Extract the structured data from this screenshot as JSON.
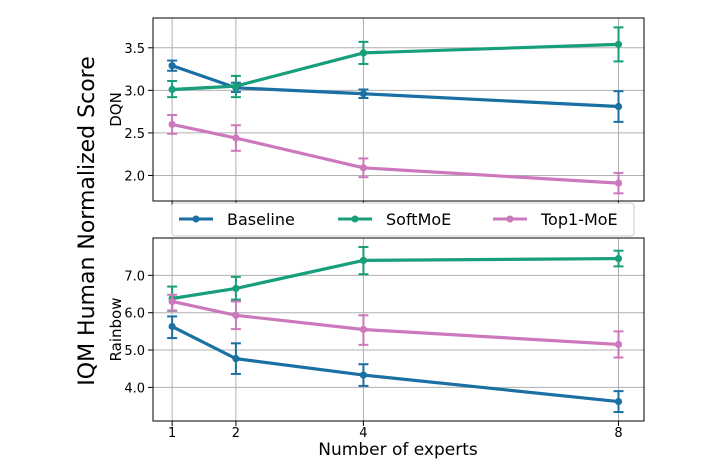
{
  "chart_data": {
    "type": "line",
    "ylabel": "IQM Human Normalized Score",
    "xlabel": "Number of experts",
    "x": [
      1,
      2,
      4,
      8
    ],
    "xticks": [
      1,
      2,
      4,
      8
    ],
    "legend": {
      "placement": "between panels",
      "entries": [
        "Baseline",
        "SoftMoE",
        "Top1-MoE"
      ]
    },
    "colors": {
      "Baseline": "#1a6fa3",
      "SoftMoE": "#179e7a",
      "Top1-MoE": "#cc78bc"
    },
    "panels": [
      {
        "ylabel": "DQN",
        "ylim": [
          1.7,
          3.85
        ],
        "yticks": [
          2.0,
          2.5,
          3.0,
          3.5
        ],
        "ytick_labels": [
          "2.0",
          "2.5",
          "3.0",
          "3.5"
        ],
        "grid": true,
        "series": [
          {
            "name": "Baseline",
            "values": [
              3.29,
              3.03,
              2.96,
              2.81
            ],
            "err_low": [
              3.23,
              2.98,
              2.91,
              2.63
            ],
            "err_high": [
              3.35,
              3.09,
              3.01,
              2.99
            ]
          },
          {
            "name": "SoftMoE",
            "values": [
              3.01,
              3.05,
              3.44,
              3.54
            ],
            "err_low": [
              2.92,
              2.92,
              3.31,
              3.34
            ],
            "err_high": [
              3.11,
              3.17,
              3.57,
              3.74
            ]
          },
          {
            "name": "Top1-MoE",
            "values": [
              2.6,
              2.44,
              2.09,
              1.91
            ],
            "err_low": [
              2.49,
              2.29,
              1.98,
              1.79
            ],
            "err_high": [
              2.71,
              2.59,
              2.2,
              2.03
            ]
          }
        ]
      },
      {
        "ylabel": "Rainbow",
        "ylim": [
          3.1,
          8.0
        ],
        "yticks": [
          4.0,
          5.0,
          6.0,
          7.0
        ],
        "ytick_labels": [
          "4.0",
          "5.0",
          "6.0",
          "7.0"
        ],
        "grid": true,
        "series": [
          {
            "name": "Baseline",
            "values": [
              5.63,
              4.77,
              4.33,
              3.62
            ],
            "err_low": [
              5.32,
              4.36,
              4.04,
              3.34
            ],
            "err_high": [
              5.9,
              5.18,
              4.62,
              3.9
            ]
          },
          {
            "name": "SoftMoE",
            "values": [
              6.38,
              6.65,
              7.4,
              7.45
            ],
            "err_low": [
              6.05,
              6.35,
              7.03,
              7.24
            ],
            "err_high": [
              6.7,
              6.96,
              7.76,
              7.66
            ]
          },
          {
            "name": "Top1-MoE",
            "values": [
              6.3,
              5.93,
              5.55,
              5.15
            ],
            "err_low": [
              6.06,
              5.56,
              5.14,
              4.8
            ],
            "err_high": [
              6.48,
              6.3,
              5.93,
              5.5
            ]
          }
        ]
      }
    ]
  }
}
